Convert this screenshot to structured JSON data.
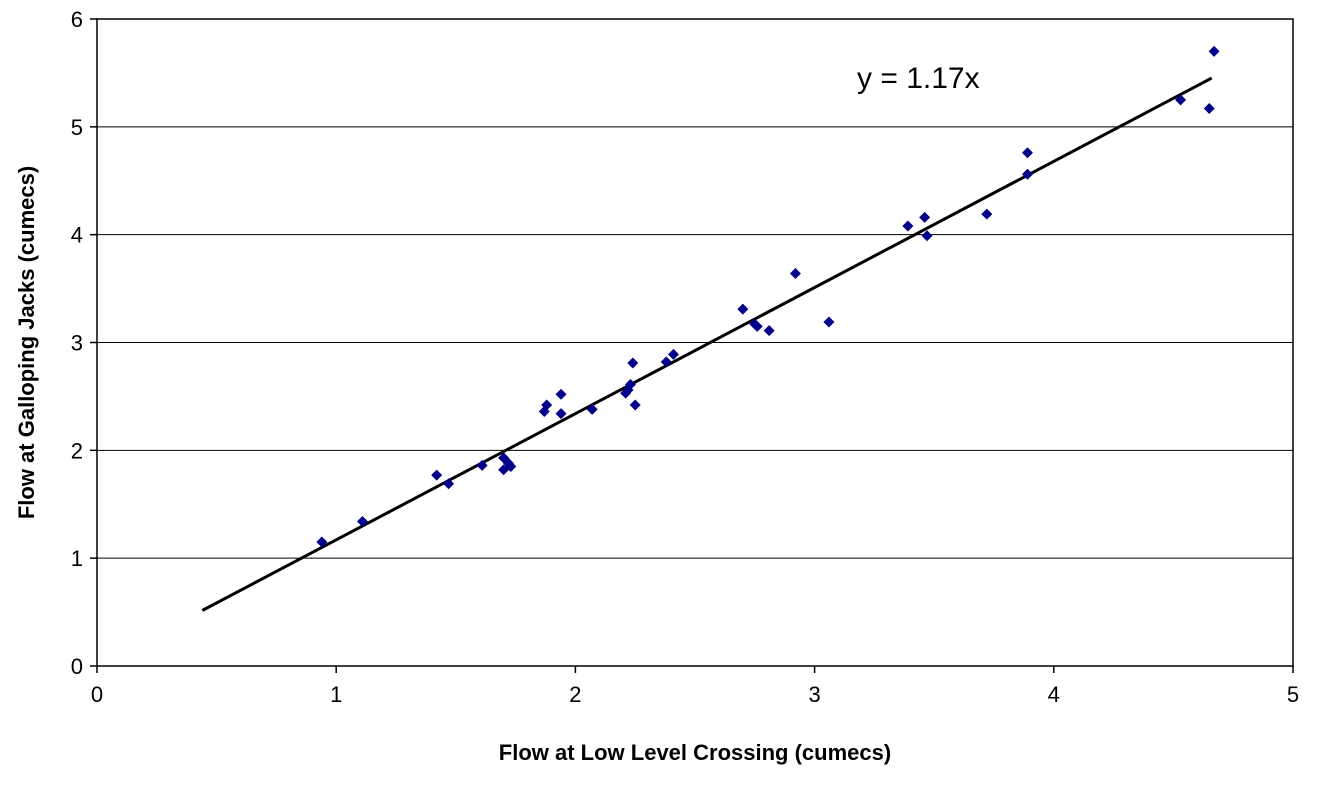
{
  "chart_data": {
    "type": "scatter",
    "title": "",
    "xlabel": "Flow at Low Level Crossing (cumecs)",
    "ylabel": "Flow at Galloping Jacks (cumecs)",
    "xlim": [
      0,
      5
    ],
    "ylim": [
      0,
      6
    ],
    "x_ticks": [
      "0",
      "1",
      "2",
      "3",
      "4",
      "5"
    ],
    "y_ticks": [
      "0",
      "1",
      "2",
      "3",
      "4",
      "5",
      "6"
    ],
    "grid": "horizontal major gridlines",
    "legend": "none",
    "marker_color": "#00008B",
    "marker_shape": "diamond",
    "points": [
      {
        "x": 0.94,
        "y": 1.15
      },
      {
        "x": 1.11,
        "y": 1.34
      },
      {
        "x": 1.42,
        "y": 1.77
      },
      {
        "x": 1.47,
        "y": 1.69
      },
      {
        "x": 1.61,
        "y": 1.86
      },
      {
        "x": 1.7,
        "y": 1.93
      },
      {
        "x": 1.7,
        "y": 1.82
      },
      {
        "x": 1.72,
        "y": 1.88
      },
      {
        "x": 1.73,
        "y": 1.85
      },
      {
        "x": 1.87,
        "y": 2.36
      },
      {
        "x": 1.88,
        "y": 2.42
      },
      {
        "x": 1.94,
        "y": 2.52
      },
      {
        "x": 1.94,
        "y": 2.34
      },
      {
        "x": 2.07,
        "y": 2.38
      },
      {
        "x": 2.21,
        "y": 2.53
      },
      {
        "x": 2.22,
        "y": 2.56
      },
      {
        "x": 2.23,
        "y": 2.61
      },
      {
        "x": 2.24,
        "y": 2.81
      },
      {
        "x": 2.25,
        "y": 2.42
      },
      {
        "x": 2.38,
        "y": 2.82
      },
      {
        "x": 2.41,
        "y": 2.89
      },
      {
        "x": 2.7,
        "y": 3.31
      },
      {
        "x": 2.75,
        "y": 3.17
      },
      {
        "x": 2.76,
        "y": 3.15
      },
      {
        "x": 2.81,
        "y": 3.11
      },
      {
        "x": 2.92,
        "y": 3.64
      },
      {
        "x": 3.06,
        "y": 3.19
      },
      {
        "x": 3.39,
        "y": 4.08
      },
      {
        "x": 3.46,
        "y": 4.16
      },
      {
        "x": 3.47,
        "y": 3.99
      },
      {
        "x": 3.72,
        "y": 4.19
      },
      {
        "x": 3.89,
        "y": 4.76
      },
      {
        "x": 3.89,
        "y": 4.56
      },
      {
        "x": 4.53,
        "y": 5.25
      },
      {
        "x": 4.65,
        "y": 5.17
      },
      {
        "x": 4.67,
        "y": 5.7
      }
    ],
    "trendline": {
      "equation": "y = 1.17x",
      "slope": 1.17,
      "x_start": 0.44,
      "x_end": 4.66,
      "color": "#000000"
    }
  }
}
